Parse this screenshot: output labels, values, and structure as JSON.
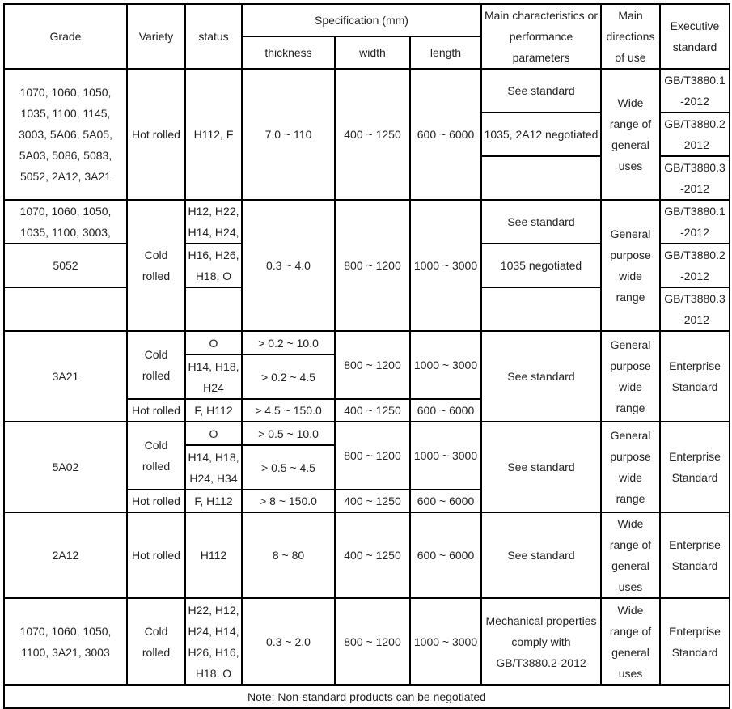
{
  "header": {
    "grade": "Grade",
    "variety": "Variety",
    "status": "status",
    "spec": "Specification (mm)",
    "thickness": "thickness",
    "width": "width",
    "length": "length",
    "main_char": "Main characteristics or performance parameters",
    "directions": "Main directions of use",
    "exec": "Executive standard"
  },
  "g1": {
    "grade": "1070, 1060, 1050, 1035, 1100, 1145, 3003, 5A06, 5A05, 5A03, 5086, 5083, 5052, 2A12, 3A21",
    "variety": "Hot rolled",
    "status": "H112, F",
    "thickness": "7.0 ~ 110",
    "width": "400 ~ 1250",
    "length": "600 ~ 6000",
    "char": [
      "See standard",
      "1035, 2A12 negotiated",
      ""
    ],
    "directions": "Wide range of general uses",
    "exec": [
      "GB/T3880.1-2012",
      "GB/T3880.2-2012",
      "GB/T3880.3-2012"
    ]
  },
  "g2": {
    "grade": [
      "1070, 1060, 1050, 1035, 1100, 3003,",
      "5052",
      ""
    ],
    "variety": "Cold rolled",
    "status": [
      "H12, H22, H14, H24,",
      "H16, H26, H18, O",
      ""
    ],
    "thickness": "0.3 ~ 4.0",
    "width": "800 ~ 1200",
    "length": "1000 ~ 3000",
    "char": [
      "See standard",
      "1035 negotiated",
      ""
    ],
    "directions": "General purpose wide range",
    "exec": [
      "GB/T3880.1-2012",
      "GB/T3880.2-2012",
      "GB/T3880.3-2012"
    ]
  },
  "g3": {
    "grade": "3A21",
    "variety": [
      "Cold rolled",
      "Hot rolled"
    ],
    "status": [
      "O",
      "H14, H18, H24",
      "F, H112"
    ],
    "thickness": [
      "> 0.2 ~ 10.0",
      "> 0.2 ~ 4.5",
      "> 4.5 ~ 150.0"
    ],
    "width": [
      "800 ~ 1200",
      "400 ~ 1250"
    ],
    "length": [
      "1000 ~ 3000",
      "600 ~ 6000"
    ],
    "char": "See standard",
    "directions": "General purpose wide range",
    "exec": "Enterprise Standard"
  },
  "g4": {
    "grade": "5A02",
    "variety": [
      "Cold rolled",
      "Hot rolled"
    ],
    "status": [
      "O",
      "H14, H18, H24, H34",
      "F, H112"
    ],
    "thickness": [
      "> 0.5 ~ 10.0",
      "> 0.5 ~ 4.5",
      "> 8 ~ 150.0"
    ],
    "width": [
      "800 ~ 1200",
      "400 ~ 1250"
    ],
    "length": [
      "1000 ~ 3000",
      "600 ~ 6000"
    ],
    "char": "See standard",
    "directions": "General purpose wide range",
    "exec": "Enterprise Standard"
  },
  "g5": {
    "grade": "2A12",
    "variety": "Hot rolled",
    "status": "H112",
    "thickness": "8 ~ 80",
    "width": "400 ~ 1250",
    "length": "600 ~ 6000",
    "char": "See standard",
    "directions": "Wide range of general uses",
    "exec": "Enterprise Standard"
  },
  "g6": {
    "grade": "1070, 1060, 1050, 1100, 3A21, 3003",
    "variety": "Cold rolled",
    "status": "H22, H12, H24, H14, H26, H16, H18, O",
    "thickness": "0.3 ~ 2.0",
    "width": "800 ~ 1200",
    "length": "1000 ~ 3000",
    "char": "Mechanical properties comply with GB/T3880.2-2012",
    "directions": "Wide range of general uses",
    "exec": "Enterprise Standard"
  },
  "note": "Note: Non-standard products can be negotiated"
}
